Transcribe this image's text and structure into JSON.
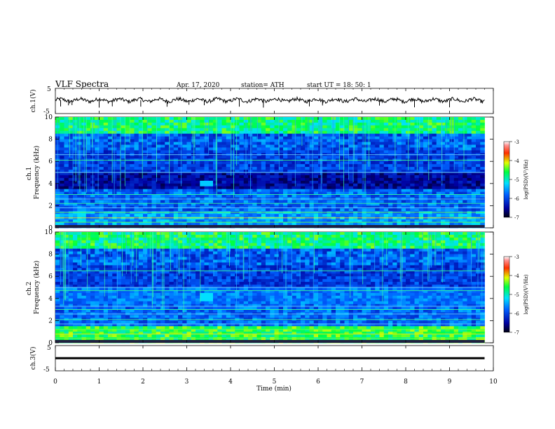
{
  "header": {
    "title": "VLF  Spectra",
    "date": "Apr. 17,  2020",
    "station": "station= ATH",
    "start": "start  UT  =    18: 50: 1"
  },
  "colors": {
    "spec_low": "#000022",
    "spec_mid": "#0044ff",
    "spec_high": "#00ff88",
    "spec_peak": "#ffdd00",
    "trace": "#000000"
  },
  "chart_data": [
    {
      "type": "line",
      "panel": "ch1-waveform",
      "ylabel": "ch.1(V)",
      "ylim": [
        -5,
        5
      ],
      "yticks": [
        "5",
        "-5"
      ],
      "xlim": [
        0,
        10
      ],
      "baseline_v": 0.3,
      "series": [
        {
          "values_note": "noisy waveform near 0 V with downward spikes"
        }
      ]
    },
    {
      "type": "heatmap",
      "panel": "ch1-spectrogram",
      "ylabel_top": "ch.1",
      "ylabel": "Frequency  (kHz)",
      "ylim": [
        0,
        10
      ],
      "yticks": [
        "0",
        "2",
        "4",
        "6",
        "8",
        "10"
      ],
      "xlim": [
        0,
        9.8
      ],
      "colorbar": {
        "label": "log(PSD)(V²/Hz)",
        "ticks": [
          "-3",
          "-4",
          "-5",
          "-6",
          "-7"
        ],
        "range": [
          -7,
          -3
        ]
      },
      "features": [
        {
          "kind": "burst",
          "t_start": 3.35,
          "t_end": 3.65,
          "f_low": 3.7,
          "f_high": 4.3,
          "level": -5.3
        },
        {
          "kind": "quiet_band",
          "f_low": 3.5,
          "f_high": 4.8
        }
      ],
      "hlines_khz": [
        0.5,
        0.9,
        1.4,
        1.8,
        2.2,
        2.6,
        3.0,
        5.0,
        6.1,
        6.6
      ]
    },
    {
      "type": "heatmap",
      "panel": "ch2-spectrogram",
      "ylabel_top": "ch.2",
      "ylabel": "Frequency  (kHz)",
      "ylim": [
        0,
        10
      ],
      "yticks": [
        "0",
        "2",
        "4",
        "6",
        "8",
        "10"
      ],
      "xlim": [
        0,
        9.8
      ],
      "colorbar": {
        "label": "log(PSD)(V²/Hz)",
        "ticks": [
          "-3",
          "-4",
          "-5",
          "-6",
          "-7"
        ],
        "range": [
          -7,
          -3
        ]
      },
      "features": [
        {
          "kind": "burst",
          "t_start": 3.35,
          "t_end": 3.65,
          "f_low": 3.7,
          "f_high": 4.4,
          "level": -5.2
        }
      ],
      "hlines_khz": [
        0.4,
        0.8,
        1.2,
        1.7,
        2.1,
        2.6,
        3.0,
        3.3,
        4.7,
        5.0,
        6.5
      ]
    },
    {
      "type": "line",
      "panel": "ch3-waveform",
      "ylabel": "ch.3(V)",
      "ylim": [
        -5,
        5
      ],
      "yticks": [
        "5",
        "-5"
      ],
      "xlim": [
        0,
        10
      ],
      "baseline_v": 0.0,
      "series": [
        {
          "values_note": "flat thick line near 0 V"
        }
      ]
    }
  ],
  "xaxis": {
    "label": "Time  (min)",
    "ticks": [
      "0",
      "1",
      "2",
      "3",
      "4",
      "5",
      "6",
      "7",
      "8",
      "9",
      "10"
    ]
  }
}
